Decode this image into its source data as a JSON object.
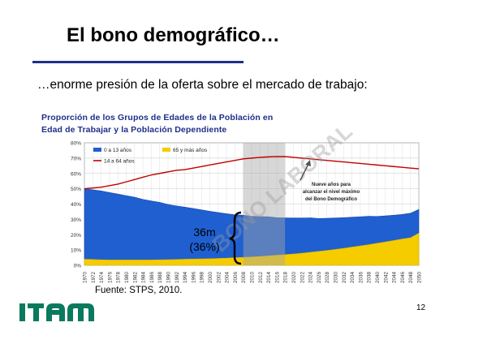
{
  "slide": {
    "title": "El bono demográfico…",
    "subtitle": "…enorme presión de la oferta sobre el mercado de trabajo:",
    "source": "Fuente: STPS, 2010.",
    "page_number": "12",
    "logo_text": "ITAM",
    "watermark": "BONO LABORAL"
  },
  "colors": {
    "title_rule": "#1f2f8a",
    "chart_title": "#1f2f8a",
    "series_0_13": "#1f5fd0",
    "series_65": "#f4cc00",
    "series_14_64": "#c00000",
    "highlight_band": "#a6a6a6",
    "logo": "#0a7a5e"
  },
  "chart_data": {
    "type": "area",
    "title_line1": "Proporción de los Grupos de Edades de la Población en",
    "title_line2": "Edad de Trabajar y la Población Dependiente",
    "x": [
      1970,
      1972,
      1974,
      1976,
      1978,
      1980,
      1982,
      1984,
      1986,
      1988,
      1990,
      1992,
      1994,
      1996,
      1998,
      2000,
      2002,
      2004,
      2006,
      2008,
      2010,
      2012,
      2014,
      2016,
      2018,
      2020,
      2022,
      2024,
      2026,
      2028,
      2030,
      2032,
      2034,
      2036,
      2038,
      2040,
      2042,
      2044,
      2046,
      2048,
      2050
    ],
    "ylim": [
      0,
      0.8
    ],
    "y_ticks": [
      "0%",
      "10%",
      "20%",
      "30%",
      "40%",
      "50%",
      "60%",
      "70%",
      "80%"
    ],
    "grid": true,
    "legend_position": "top-left",
    "series": [
      {
        "name": "0 a 13 años",
        "type": "area",
        "values": [
          0.46,
          0.455,
          0.45,
          0.44,
          0.43,
          0.42,
          0.41,
          0.395,
          0.385,
          0.375,
          0.36,
          0.35,
          0.34,
          0.33,
          0.32,
          0.31,
          0.3,
          0.29,
          0.28,
          0.275,
          0.265,
          0.26,
          0.255,
          0.245,
          0.24,
          0.235,
          0.23,
          0.225,
          0.215,
          0.21,
          0.205,
          0.2,
          0.195,
          0.19,
          0.185,
          0.175,
          0.17,
          0.165,
          0.16,
          0.16,
          0.155
        ]
      },
      {
        "name": "65 y más años",
        "type": "area",
        "values": [
          0.04,
          0.038,
          0.036,
          0.035,
          0.035,
          0.035,
          0.035,
          0.035,
          0.035,
          0.036,
          0.037,
          0.038,
          0.04,
          0.041,
          0.042,
          0.043,
          0.045,
          0.047,
          0.05,
          0.052,
          0.055,
          0.058,
          0.062,
          0.066,
          0.07,
          0.074,
          0.079,
          0.085,
          0.091,
          0.097,
          0.104,
          0.111,
          0.119,
          0.127,
          0.135,
          0.144,
          0.153,
          0.162,
          0.172,
          0.18,
          0.21
        ]
      },
      {
        "name": "14 a 64 años",
        "type": "line",
        "values": [
          0.5,
          0.505,
          0.51,
          0.52,
          0.53,
          0.545,
          0.56,
          0.575,
          0.59,
          0.6,
          0.61,
          0.62,
          0.625,
          0.635,
          0.645,
          0.655,
          0.665,
          0.675,
          0.685,
          0.695,
          0.7,
          0.705,
          0.708,
          0.71,
          0.71,
          0.705,
          0.7,
          0.695,
          0.69,
          0.685,
          0.68,
          0.675,
          0.67,
          0.665,
          0.66,
          0.655,
          0.65,
          0.645,
          0.64,
          0.635,
          0.63
        ]
      }
    ],
    "highlight_range": [
      2008,
      2018
    ],
    "annotations": {
      "peak_note": [
        "Nueve años para",
        "alcanzar el nivel máximo",
        "del Bono Demográfico"
      ],
      "brace_label_1": "36m",
      "brace_label_2": "(36%)"
    }
  }
}
